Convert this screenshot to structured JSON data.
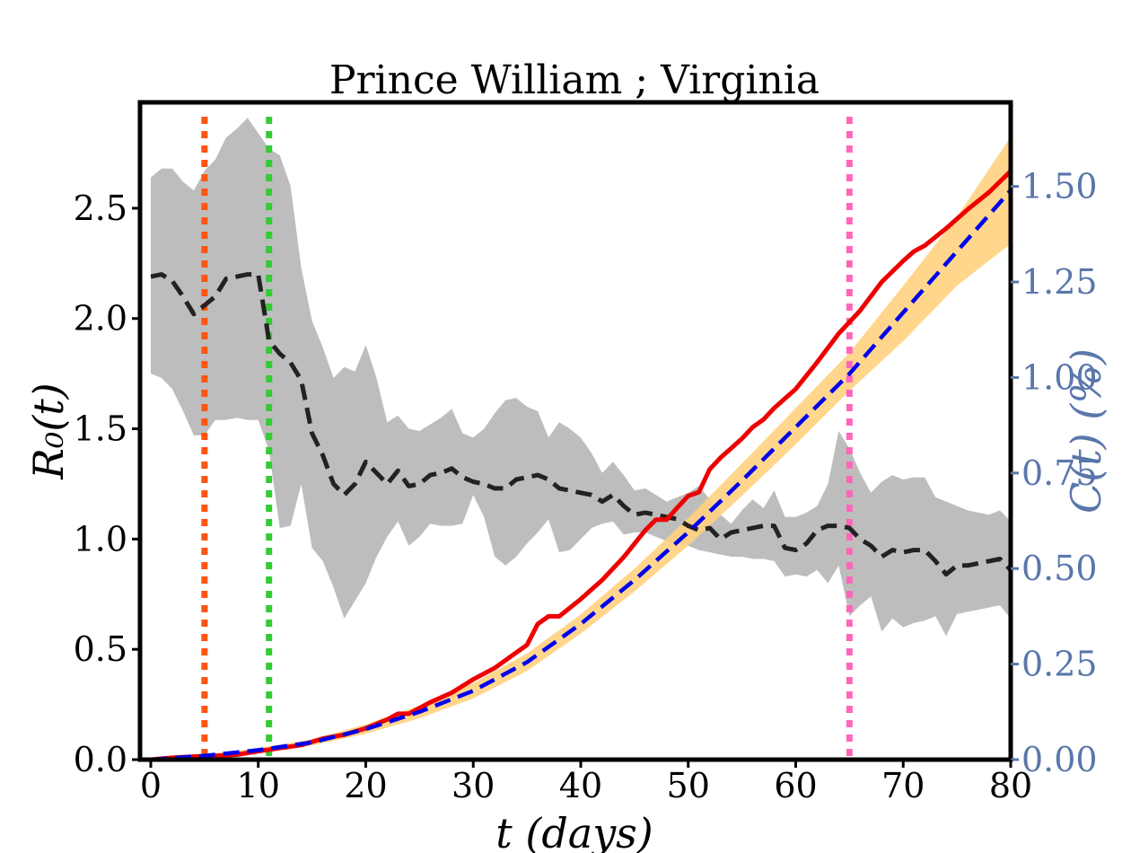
{
  "chart_data": {
    "type": "line",
    "title": "Prince William ; Virginia",
    "xlabel": "t (days)",
    "ylabel_left": "R₀(t)",
    "ylabel_right": "C(t) (%)",
    "xlim": [
      -1,
      80
    ],
    "ylim_left": [
      0,
      2.98
    ],
    "ylim_right": [
      0,
      1.72
    ],
    "x_ticks": [
      0,
      10,
      20,
      30,
      40,
      50,
      60,
      70,
      80
    ],
    "x_tick_labels": [
      "0",
      "10",
      "20",
      "30",
      "40",
      "50",
      "60",
      "70",
      "80"
    ],
    "y_left_ticks": [
      0.0,
      0.5,
      1.0,
      1.5,
      2.0,
      2.5
    ],
    "y_left_tick_labels": [
      "0.0",
      "0.5",
      "1.0",
      "1.5",
      "2.0",
      "2.5"
    ],
    "y_right_ticks": [
      0.0,
      0.25,
      0.5,
      0.75,
      1.0,
      1.25,
      1.5
    ],
    "y_right_tick_labels": [
      "0.00",
      "0.25",
      "0.50",
      "0.75",
      "1.00",
      "1.25",
      "1.50"
    ],
    "grid": false,
    "colors": {
      "r0_line": "#222222",
      "r0_band": "#bdbdbd",
      "c_observed": "#ee0000",
      "c_model": "#0000ee",
      "c_band": "#ffd280",
      "right_axis": "#5a77ab",
      "vline_1": "#ff5511",
      "vline_2": "#33cc33",
      "vline_3": "#ff66bb"
    },
    "vertical_lines": [
      {
        "x": 5,
        "color": "#ff5511"
      },
      {
        "x": 11,
        "color": "#33cc33"
      },
      {
        "x": 65,
        "color": "#ff66bb"
      }
    ],
    "r0_series": {
      "x": [
        0,
        1,
        2,
        3,
        4,
        5,
        6,
        7,
        8,
        9,
        10,
        11,
        12,
        13,
        14,
        15,
        16,
        17,
        18,
        19,
        20,
        21,
        22,
        23,
        24,
        25,
        26,
        27,
        28,
        29,
        30,
        31,
        32,
        33,
        34,
        35,
        36,
        37,
        38,
        39,
        40,
        41,
        42,
        43,
        44,
        45,
        46,
        47,
        48,
        49,
        50,
        51,
        52,
        53,
        54,
        55,
        56,
        57,
        58,
        59,
        60,
        61,
        62,
        63,
        64,
        65,
        66,
        67,
        68,
        69,
        70,
        71,
        72,
        73,
        74,
        75,
        76,
        77,
        78,
        79,
        80
      ],
      "y": [
        2.19,
        2.2,
        2.17,
        2.1,
        2.02,
        2.06,
        2.1,
        2.18,
        2.19,
        2.2,
        2.2,
        1.9,
        1.84,
        1.8,
        1.72,
        1.48,
        1.38,
        1.25,
        1.2,
        1.25,
        1.35,
        1.3,
        1.25,
        1.31,
        1.24,
        1.25,
        1.29,
        1.3,
        1.32,
        1.28,
        1.26,
        1.25,
        1.23,
        1.23,
        1.27,
        1.28,
        1.29,
        1.27,
        1.23,
        1.22,
        1.21,
        1.2,
        1.17,
        1.2,
        1.15,
        1.11,
        1.12,
        1.11,
        1.1,
        1.09,
        1.06,
        1.04,
        1.05,
        1.0,
        1.03,
        1.04,
        1.05,
        1.06,
        1.06,
        0.96,
        0.95,
        0.98,
        1.04,
        1.06,
        1.06,
        1.05,
        1.0,
        0.97,
        0.92,
        0.95,
        0.94,
        0.95,
        0.95,
        0.9,
        0.84,
        0.88,
        0.88,
        0.89,
        0.9,
        0.91,
        0.86
      ],
      "lower": [
        1.75,
        1.73,
        1.68,
        1.58,
        1.47,
        1.47,
        1.54,
        1.54,
        1.55,
        1.54,
        1.54,
        1.4,
        1.05,
        1.06,
        1.25,
        0.96,
        0.9,
        0.78,
        0.64,
        0.72,
        0.8,
        0.92,
        1.01,
        1.08,
        0.97,
        1.01,
        1.07,
        1.06,
        1.06,
        1.07,
        1.2,
        1.1,
        0.92,
        0.88,
        0.92,
        0.98,
        1.03,
        1.09,
        0.94,
        0.95,
        1.0,
        1.05,
        1.07,
        1.08,
        1.02,
        1.03,
        1.03,
        1.01,
        0.99,
        0.98,
        0.97,
        0.95,
        0.94,
        0.93,
        0.92,
        0.92,
        0.91,
        0.91,
        0.9,
        0.83,
        0.84,
        0.83,
        0.86,
        0.8,
        0.88,
        0.65,
        0.7,
        0.74,
        0.58,
        0.64,
        0.6,
        0.62,
        0.63,
        0.65,
        0.56,
        0.66,
        0.67,
        0.68,
        0.69,
        0.7,
        0.64
      ],
      "upper": [
        2.64,
        2.68,
        2.68,
        2.62,
        2.58,
        2.67,
        2.72,
        2.82,
        2.86,
        2.91,
        2.84,
        2.77,
        2.74,
        2.6,
        2.23,
        1.99,
        1.87,
        1.73,
        1.78,
        1.76,
        1.88,
        1.73,
        1.53,
        1.56,
        1.5,
        1.49,
        1.52,
        1.55,
        1.59,
        1.48,
        1.46,
        1.5,
        1.57,
        1.63,
        1.64,
        1.6,
        1.58,
        1.46,
        1.53,
        1.5,
        1.46,
        1.39,
        1.3,
        1.35,
        1.29,
        1.22,
        1.23,
        1.2,
        1.17,
        1.19,
        1.21,
        1.24,
        1.18,
        1.11,
        1.07,
        1.13,
        1.18,
        1.14,
        1.22,
        1.1,
        1.1,
        1.12,
        1.15,
        1.25,
        1.49,
        1.41,
        1.3,
        1.21,
        1.26,
        1.29,
        1.27,
        1.28,
        1.28,
        1.19,
        1.17,
        1.15,
        1.13,
        1.12,
        1.11,
        1.13,
        1.08
      ]
    },
    "c_observed": {
      "x": [
        0,
        2,
        4,
        6,
        8,
        10,
        12,
        14,
        16,
        18,
        20,
        22,
        23,
        24,
        26,
        28,
        30,
        32,
        34,
        35,
        36,
        37,
        38,
        40,
        42,
        44,
        46,
        47,
        48,
        49,
        50,
        51,
        52,
        53,
        54,
        55,
        56,
        57,
        58,
        60,
        62,
        64,
        66,
        68,
        70,
        71,
        72,
        74,
        76,
        78,
        80
      ],
      "y": [
        0.0,
        0.005,
        0.008,
        0.01,
        0.013,
        0.022,
        0.03,
        0.038,
        0.055,
        0.065,
        0.082,
        0.105,
        0.12,
        0.12,
        0.15,
        0.175,
        0.21,
        0.24,
        0.28,
        0.3,
        0.355,
        0.375,
        0.375,
        0.42,
        0.47,
        0.53,
        0.6,
        0.628,
        0.628,
        0.66,
        0.69,
        0.7,
        0.76,
        0.79,
        0.815,
        0.84,
        0.87,
        0.89,
        0.92,
        0.97,
        1.04,
        1.115,
        1.175,
        1.25,
        1.305,
        1.33,
        1.345,
        1.39,
        1.44,
        1.485,
        1.54
      ]
    },
    "c_model": {
      "x": [
        0,
        5,
        10,
        15,
        20,
        25,
        30,
        35,
        40,
        45,
        50,
        55,
        60,
        65,
        70,
        75,
        80
      ],
      "y": [
        0.0,
        0.01,
        0.025,
        0.045,
        0.08,
        0.125,
        0.18,
        0.255,
        0.355,
        0.47,
        0.595,
        0.73,
        0.87,
        1.01,
        1.17,
        1.33,
        1.49
      ],
      "lower": [
        0.0,
        0.008,
        0.02,
        0.037,
        0.068,
        0.108,
        0.16,
        0.232,
        0.33,
        0.44,
        0.56,
        0.69,
        0.825,
        0.965,
        1.095,
        1.24,
        1.35
      ],
      "upper": [
        0.0,
        0.012,
        0.03,
        0.053,
        0.092,
        0.142,
        0.2,
        0.278,
        0.38,
        0.5,
        0.632,
        0.775,
        0.92,
        1.065,
        1.24,
        1.42,
        1.63
      ]
    }
  }
}
